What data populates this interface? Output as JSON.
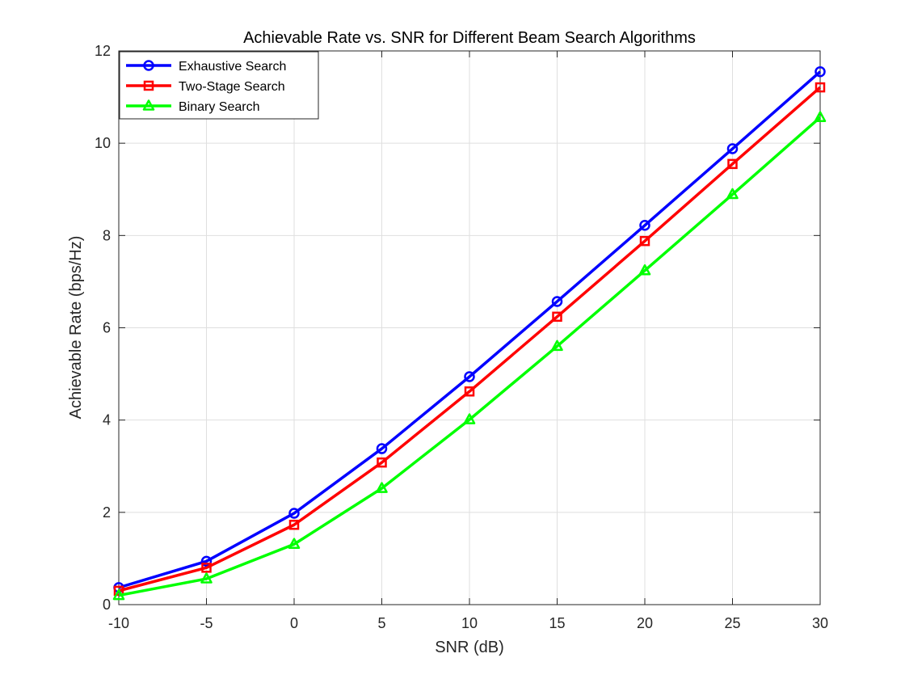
{
  "chart_data": {
    "type": "line",
    "title": "Achievable Rate vs. SNR for Different Beam Search Algorithms",
    "xlabel": "SNR (dB)",
    "ylabel": "Achievable Rate (bps/Hz)",
    "x": [
      -10,
      -5,
      0,
      5,
      10,
      15,
      20,
      25,
      30
    ],
    "xlim": [
      -10,
      30
    ],
    "ylim": [
      0,
      12
    ],
    "xticks": [
      -10,
      -5,
      0,
      5,
      10,
      15,
      20,
      25,
      30
    ],
    "yticks": [
      0,
      2,
      4,
      6,
      8,
      10,
      12
    ],
    "xtick_labels": [
      "-10",
      "-5",
      "0",
      "5",
      "10",
      "15",
      "20",
      "25",
      "30"
    ],
    "ytick_labels": [
      "0",
      "2",
      "4",
      "6",
      "8",
      "10",
      "12"
    ],
    "grid": true,
    "legend_position": "top-left",
    "series": [
      {
        "name": "Exhaustive Search",
        "color": "#0000ff",
        "marker": "circle",
        "values": [
          0.37,
          0.94,
          1.98,
          3.38,
          4.94,
          6.57,
          8.22,
          9.88,
          11.55
        ]
      },
      {
        "name": "Two-Stage Search",
        "color": "#ff0000",
        "marker": "square",
        "values": [
          0.3,
          0.8,
          1.73,
          3.08,
          4.62,
          6.24,
          7.88,
          9.55,
          11.21
        ]
      },
      {
        "name": "Binary Search",
        "color": "#00ff00",
        "marker": "triangle",
        "values": [
          0.2,
          0.56,
          1.31,
          2.52,
          4.01,
          5.6,
          7.24,
          8.89,
          10.56
        ]
      }
    ]
  }
}
